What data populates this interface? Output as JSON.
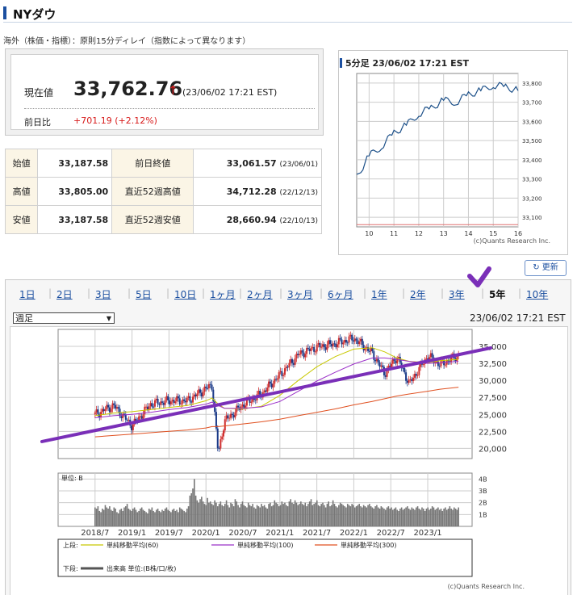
{
  "page": {
    "title": "NYダウ",
    "delay_note": "海外（株価・指標）：原則15分ディレイ（指数によって異なります）"
  },
  "quote": {
    "current_label": "現在値",
    "current_value": "33,762.76",
    "arrow": "↑",
    "current_time": "(23/06/02 17:21 EST)",
    "change_label": "前日比",
    "change_value": "+701.19 (+2.12%)",
    "up_color": "#d81b1b"
  },
  "ohlc": {
    "rows": [
      {
        "label": "始値",
        "value": "33,187.58",
        "label2": "前日終値",
        "value2": "33,061.57",
        "date2": "(23/06/01)"
      },
      {
        "label": "高値",
        "value": "33,805.00",
        "label2": "直近52週高値",
        "value2": "34,712.28",
        "date2": "(22/12/13)"
      },
      {
        "label": "安値",
        "value": "33,187.58",
        "label2": "直近52週安値",
        "value2": "28,660.94",
        "date2": "(22/10/13)"
      }
    ]
  },
  "mini_chart": {
    "title": "5分足 23/06/02 17:21 EST",
    "credit": "(c)Quants Research Inc."
  },
  "refresh_label": "更新",
  "tabs": {
    "items": [
      "1日",
      "2日",
      "3日",
      "5日",
      "10日",
      "1ヶ月",
      "2ヶ月",
      "3ヶ月",
      "6ヶ月",
      "1年",
      "2年",
      "3年",
      "5年",
      "10年"
    ],
    "active": "5年"
  },
  "period_select": {
    "value": "週足"
  },
  "main_chart": {
    "time": "23/06/02 17:21 EST",
    "unit_label": "単位: B",
    "legend_upper_label": "上段:",
    "legend_lower_label": "下段:",
    "legend_items": [
      {
        "name": "単純移動平均(60)",
        "color": "#c8c800"
      },
      {
        "name": "単純移動平均(100)",
        "color": "#9b30c8"
      },
      {
        "name": "単純移動平均(300)",
        "color": "#e05020"
      }
    ],
    "legend_volume": "出来高 単位:(B株/口/枚)",
    "credit": "(c)Quants Research Inc.",
    "trendline_color": "#7a2fb8",
    "checkmark_color": "#7a2fb8"
  },
  "chart_data": [
    {
      "type": "line",
      "name": "intraday-5min",
      "x": [
        9.5,
        10,
        10.5,
        11,
        11.5,
        12,
        12.5,
        13,
        13.5,
        14,
        14.5,
        15,
        15.5,
        16
      ],
      "y": [
        33310,
        33420,
        33470,
        33540,
        33580,
        33640,
        33670,
        33710,
        33700,
        33740,
        33760,
        33790,
        33780,
        33760
      ],
      "xticks": [
        "10",
        "11",
        "12",
        "13",
        "14",
        "15",
        "16"
      ],
      "yticks": [
        "33,100",
        "33,200",
        "33,300",
        "33,400",
        "33,500",
        "33,600",
        "33,700",
        "33,800"
      ],
      "ylim": [
        33050,
        33850
      ],
      "reference_line": 33061.57
    },
    {
      "type": "line",
      "name": "weekly-5y",
      "x": [
        "2018/7",
        "2018/10",
        "2019/1",
        "2019/4",
        "2019/7",
        "2019/10",
        "2020/1",
        "2020/2",
        "2020/3",
        "2020/4",
        "2020/7",
        "2020/10",
        "2021/1",
        "2021/4",
        "2021/7",
        "2021/10",
        "2022/1",
        "2022/4",
        "2022/6",
        "2022/8",
        "2022/10",
        "2023/1",
        "2023/3",
        "2023/6"
      ],
      "y": [
        25000,
        26300,
        23300,
        26500,
        27000,
        27000,
        28800,
        29300,
        19200,
        24000,
        26400,
        28000,
        30800,
        33800,
        34900,
        35400,
        36200,
        34000,
        31000,
        33500,
        29500,
        33600,
        32300,
        33700
      ],
      "xticks": [
        "2018/7",
        "2019/1",
        "2019/7",
        "2020/1",
        "2020/7",
        "2021/1",
        "2021/7",
        "2022/1",
        "2022/7",
        "2023/1"
      ],
      "yticks": [
        "20,000",
        "22,500",
        "25,000",
        "27,500",
        "30,000",
        "32,500",
        "35,000"
      ],
      "ylim": [
        18500,
        37500
      ],
      "ma60": [
        24800,
        25200,
        25400,
        25700,
        26000,
        26300,
        27000,
        27400,
        26500,
        25900,
        25800,
        26200,
        27800,
        30000,
        32000,
        33500,
        34600,
        34800,
        34200,
        33300,
        32800,
        32600,
        32900,
        33100
      ],
      "ma100": [
        24500,
        24800,
        25000,
        25300,
        25700,
        26000,
        26500,
        26800,
        26300,
        25900,
        25900,
        26100,
        26900,
        28400,
        29900,
        31200,
        32400,
        33300,
        33300,
        33100,
        32800,
        32500,
        32600,
        32800
      ],
      "ma300": [
        21700,
        21900,
        22100,
        22300,
        22500,
        22700,
        23000,
        23200,
        23200,
        23300,
        23600,
        23900,
        24300,
        24800,
        25300,
        25800,
        26400,
        26900,
        27300,
        27700,
        28000,
        28400,
        28700,
        29000
      ],
      "trendline": {
        "start": [
          2018.0,
          21500
        ],
        "end": [
          2023.6,
          34200
        ]
      }
    },
    {
      "type": "bar",
      "name": "weekly-volume",
      "yticks": [
        "1B",
        "2B",
        "3B",
        "4B"
      ],
      "ylim": [
        0,
        4.5
      ],
      "values": [
        1.6,
        1.5,
        1.7,
        1.3,
        1.2,
        1.5,
        1.4,
        1.8,
        1.6,
        1.5,
        1.7,
        1.4,
        1.3,
        1.6,
        1.5,
        1.2,
        1.1,
        1.4,
        1.5,
        1.3,
        1.6,
        1.7,
        1.9,
        1.5,
        1.4,
        1.3,
        1.5,
        1.6,
        1.4,
        1.2,
        1.3,
        1.5,
        1.6,
        1.4,
        1.3,
        1.2,
        1.1,
        1.5,
        1.4,
        1.6,
        1.3,
        1.2,
        1.4,
        1.5,
        1.3,
        1.2,
        1.4,
        1.3,
        1.5,
        1.6,
        1.4,
        1.3,
        1.2,
        1.4,
        1.5,
        1.3,
        1.4,
        1.2,
        1.6,
        1.5,
        1.4,
        1.3,
        1.2,
        1.5,
        1.7,
        2.6,
        2.8,
        3.2,
        4.0,
        2.6,
        2.2,
        2.0,
        2.3,
        2.5,
        2.1,
        1.9,
        1.8,
        2.4,
        2.0,
        2.1,
        1.9,
        1.8,
        2.2,
        2.0,
        1.7,
        1.9,
        2.1,
        1.8,
        1.7,
        1.9,
        2.2,
        1.8,
        1.6,
        2.0,
        1.9,
        1.7,
        2.3,
        2.1,
        1.8,
        1.6,
        1.9,
        2.1,
        1.8,
        1.7,
        1.6,
        2.0,
        1.8,
        1.7,
        1.9,
        1.6,
        1.5,
        1.8,
        1.7,
        1.6,
        1.9,
        1.7,
        1.8,
        1.6,
        1.5,
        1.9,
        2.0,
        1.7,
        1.8,
        2.2,
        2.0,
        1.9,
        1.7,
        1.8,
        2.1,
        1.9,
        2.0,
        1.8,
        1.7,
        2.1,
        2.3,
        2.0,
        1.9,
        2.2,
        2.0,
        1.8,
        1.9,
        2.1,
        1.9,
        1.8,
        2.0,
        1.7,
        1.9,
        2.1,
        2.3,
        1.8,
        1.9,
        2.0,
        2.2,
        1.8,
        1.7,
        1.9,
        2.0,
        1.8,
        1.6,
        1.9,
        2.1,
        1.7,
        1.8,
        2.2,
        1.9,
        1.7,
        1.6,
        1.8,
        2.0,
        1.9,
        1.8,
        1.7,
        1.6,
        1.9,
        1.8,
        1.7,
        1.9,
        1.8,
        1.6,
        1.7,
        1.8,
        1.9,
        1.7,
        1.6,
        1.8,
        1.7,
        1.6,
        1.8,
        1.9,
        1.7,
        1.6,
        1.5,
        1.7,
        1.8,
        1.6,
        1.5,
        1.7,
        1.6,
        1.5,
        1.4,
        1.6,
        1.7,
        1.5,
        1.6,
        1.4,
        1.5,
        1.6,
        1.4,
        1.3,
        1.5,
        1.6,
        1.4,
        1.5,
        1.6,
        1.7,
        1.5,
        1.4,
        1.6,
        1.5,
        1.4,
        1.6,
        1.7,
        1.5,
        1.4,
        1.6,
        1.5,
        1.3,
        1.5,
        1.6,
        1.4,
        1.5,
        1.7,
        1.6,
        1.4,
        1.5,
        1.6,
        1.4,
        1.5,
        1.3,
        1.5,
        1.6,
        1.4,
        1.5,
        1.7,
        1.5,
        1.4,
        1.6,
        1.5,
        1.4,
        1.6
      ]
    }
  ]
}
